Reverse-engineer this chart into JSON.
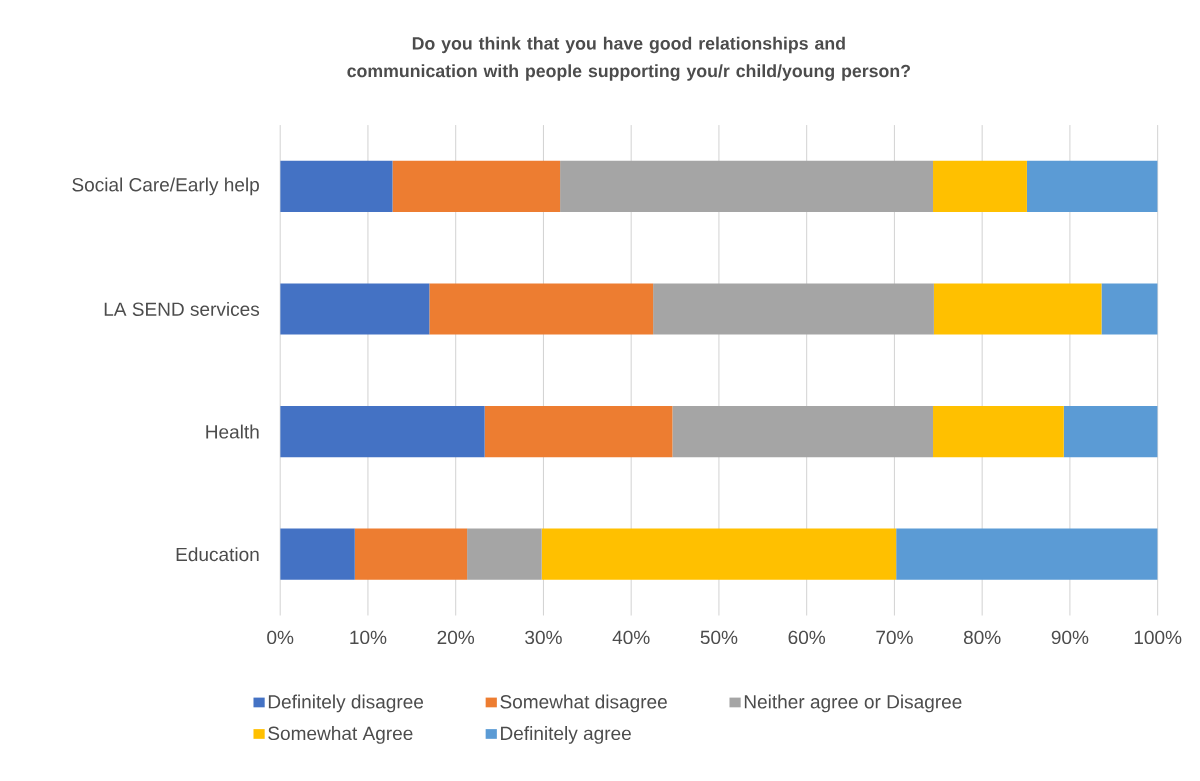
{
  "chart_data": {
    "type": "bar",
    "orientation": "horizontal",
    "stacked": true,
    "title": "Do you think that you have good relationships and communication with people supporting you/r child/young person?",
    "categories": [
      "Social Care/Early help",
      "LA SEND services",
      "Health",
      "Education"
    ],
    "series": [
      {
        "name": "Definitely disagree",
        "color": "#4472c4",
        "values": [
          12.8,
          17.0,
          23.3,
          8.5
        ]
      },
      {
        "name": "Somewhat disagree",
        "color": "#ed7d31",
        "values": [
          19.1,
          25.5,
          21.4,
          12.8
        ]
      },
      {
        "name": "Neither agree or Disagree",
        "color": "#a5a5a5",
        "values": [
          42.5,
          32.0,
          29.7,
          8.5
        ]
      },
      {
        "name": "Somewhat Agree",
        "color": "#ffc000",
        "values": [
          10.7,
          19.1,
          14.9,
          40.4
        ]
      },
      {
        "name": "Definitely agree",
        "color": "#5b9bd5",
        "values": [
          14.9,
          6.4,
          10.7,
          29.8
        ]
      }
    ],
    "xlim": [
      0,
      100
    ],
    "xticks": [
      {
        "value": 0,
        "label": "0%"
      },
      {
        "value": 10,
        "label": "10%"
      },
      {
        "value": 20,
        "label": "20%"
      },
      {
        "value": 30,
        "label": "30%"
      },
      {
        "value": 40,
        "label": "40%"
      },
      {
        "value": 50,
        "label": "50%"
      },
      {
        "value": 60,
        "label": "60%"
      },
      {
        "value": 70,
        "label": "70%"
      },
      {
        "value": 80,
        "label": "80%"
      },
      {
        "value": 90,
        "label": "90%"
      },
      {
        "value": 100,
        "label": "100%"
      }
    ],
    "grid": "x",
    "legend": "bottom"
  }
}
